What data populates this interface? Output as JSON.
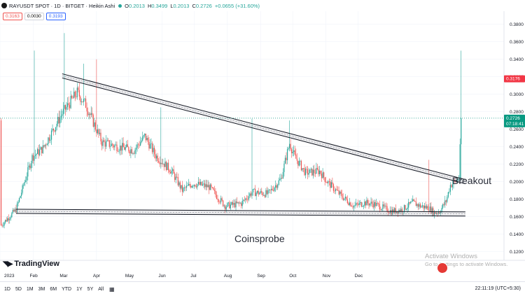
{
  "header": {
    "symbol": "RAYUSDT SPOT · 1D · BITGET · Heikin Ashi",
    "o_label": "O",
    "o_value": "0.2013",
    "h_label": "H",
    "h_value": "0.3499",
    "l_label": "L",
    "l_value": "0.2013",
    "c_label": "C",
    "c_value": "0.2726",
    "change": "+0.0655 (+31.60%)"
  },
  "order_boxes": {
    "sell": "0.3163",
    "spread": "0.0030",
    "buy": "0.3193"
  },
  "watermark": "Coinsprobe",
  "annotation": "Breakout",
  "price_tags": {
    "top": "0.3176",
    "current": "0.2726",
    "countdown": "07:18:41"
  },
  "bottom_bar": {
    "timeframes": [
      "1D",
      "5D",
      "1M",
      "3M",
      "6M",
      "YTD",
      "1Y",
      "5Y",
      "All"
    ],
    "time": "22:11:19 (UTC+5:30)"
  },
  "logo": "TradingView",
  "os_overlay": {
    "title": "Activate Windows",
    "subtitle": "Go to Settings to activate Windows."
  },
  "colors": {
    "up": "#26a69a",
    "down": "#ef5350",
    "line": "#131722",
    "tag_red": "#f23645",
    "tag_green": "#089981"
  },
  "chart_data": {
    "type": "candlestick",
    "x_ticks": [
      "2023",
      "Feb",
      "Mar",
      "Apr",
      "May",
      "Jun",
      "Jul",
      "Aug",
      "Sep",
      "Oct",
      "Nov",
      "Dec"
    ],
    "y_ticks": [
      "0.3800",
      "0.3600",
      "0.3400",
      "0.3200",
      "0.3000",
      "0.2800",
      "0.2600",
      "0.2400",
      "0.2200",
      "0.2000",
      "0.1800",
      "0.1600",
      "0.1400",
      "0.1200"
    ],
    "ylim": [
      0.11,
      0.395
    ],
    "closes": [
      [
        1,
        0.15
      ],
      [
        15,
        0.168
      ],
      [
        30,
        0.228
      ],
      [
        40,
        0.238
      ],
      [
        58,
        0.278
      ],
      [
        72,
        0.302
      ],
      [
        80,
        0.288
      ],
      [
        95,
        0.245
      ],
      [
        110,
        0.24
      ],
      [
        125,
        0.236
      ],
      [
        135,
        0.252
      ],
      [
        145,
        0.23
      ],
      [
        160,
        0.212
      ],
      [
        170,
        0.19
      ],
      [
        180,
        0.198
      ],
      [
        195,
        0.194
      ],
      [
        210,
        0.172
      ],
      [
        225,
        0.175
      ],
      [
        235,
        0.188
      ],
      [
        250,
        0.186
      ],
      [
        262,
        0.203
      ],
      [
        270,
        0.244
      ],
      [
        275,
        0.228
      ],
      [
        285,
        0.21
      ],
      [
        298,
        0.212
      ],
      [
        305,
        0.2
      ],
      [
        318,
        0.184
      ],
      [
        330,
        0.172
      ],
      [
        340,
        0.176
      ],
      [
        350,
        0.174
      ],
      [
        365,
        0.166
      ],
      [
        375,
        0.168
      ],
      [
        385,
        0.176
      ],
      [
        392,
        0.172
      ],
      [
        400,
        0.17
      ],
      [
        405,
        0.164
      ],
      [
        410,
        0.166
      ],
      [
        416,
        0.178
      ],
      [
        420,
        0.196
      ],
      [
        425,
        0.2
      ],
      [
        428,
        0.205
      ],
      [
        430,
        0.27
      ]
    ],
    "highs": [
      [
        32,
        0.35
      ],
      [
        60,
        0.37
      ],
      [
        78,
        0.335
      ],
      [
        90,
        0.34
      ],
      [
        150,
        0.285
      ],
      [
        235,
        0.272
      ],
      [
        270,
        0.27
      ],
      [
        400,
        0.225
      ],
      [
        430,
        0.349
      ]
    ],
    "trendlines": [
      {
        "name": "descending-resistance",
        "from": [
          58,
          0.321
        ],
        "to": [
          434,
          0.2
        ]
      },
      {
        "name": "horizontal-support",
        "from": [
          15,
          0.166
        ],
        "to": [
          434,
          0.163
        ]
      }
    ],
    "last_price": 0.2726
  }
}
